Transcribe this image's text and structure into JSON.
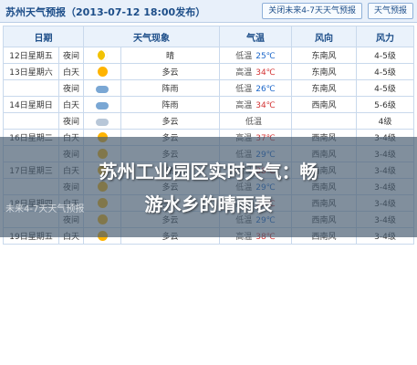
{
  "header": {
    "title": "苏州天气预报（2013-07-12 18:00发布）",
    "btn_close": "关闭未来4-7天天气预报",
    "btn_toggle": "天气预报"
  },
  "table": {
    "columns": [
      "日期",
      "天气现象",
      "气温",
      "风向",
      "风力"
    ],
    "rows": [
      {
        "date": "12日星期五",
        "period": "夜间",
        "icon": "moon-icon",
        "weather": "晴",
        "temp_label": "低温",
        "temp": "25℃",
        "wind": "东南风",
        "level": "4-5级"
      },
      {
        "date": "13日星期六",
        "period": "白天",
        "icon": "partly-cloudy-icon",
        "weather": "多云",
        "temp_label": "高温",
        "temp": "34℃",
        "wind": "东南风",
        "level": "4-5级"
      },
      {
        "date": "",
        "period": "夜间",
        "icon": "rain-icon",
        "weather": "阵雨",
        "temp_label": "低温",
        "temp": "26℃",
        "wind": "东南风",
        "level": "4-5级"
      },
      {
        "date": "14日星期日",
        "period": "白天",
        "icon": "rain-icon",
        "weather": "阵雨",
        "temp_label": "高温",
        "temp": "34℃",
        "wind": "西南风",
        "level": "5-6级"
      },
      {
        "date": "",
        "period": "夜间",
        "icon": "cloud-icon",
        "weather": "多云",
        "temp_label": "低温",
        "temp": "",
        "wind": "",
        "level": "4级"
      },
      {
        "date": "16日星期二",
        "period": "白天",
        "icon": "partly-cloudy-icon",
        "weather": "多云",
        "temp_label": "高温",
        "temp": "37℃",
        "wind": "西南风",
        "level": "3-4级"
      },
      {
        "date": "",
        "period": "夜间",
        "icon": "partly-cloudy-icon",
        "weather": "多云",
        "temp_label": "低温",
        "temp": "29℃",
        "wind": "西南风",
        "level": "3-4级"
      },
      {
        "date": "17日星期三",
        "period": "白天",
        "icon": "sun-icon",
        "weather": "晴",
        "temp_label": "高温",
        "temp": "38℃",
        "wind": "西南风",
        "level": "3-4级"
      },
      {
        "date": "",
        "period": "夜间",
        "icon": "partly-cloudy-icon",
        "weather": "多云",
        "temp_label": "低温",
        "temp": "29℃",
        "wind": "西南风",
        "level": "3-4级"
      },
      {
        "date": "18日星期四",
        "period": "白天",
        "icon": "partly-cloudy-icon",
        "weather": "多云",
        "temp_label": "高温",
        "temp": "37℃",
        "wind": "西南风",
        "level": "3-4级"
      },
      {
        "date": "",
        "period": "夜间",
        "icon": "partly-cloudy-icon",
        "weather": "多云",
        "temp_label": "低温",
        "temp": "29℃",
        "wind": "西南风",
        "level": "3-4级"
      },
      {
        "date": "19日星期五",
        "period": "白天",
        "icon": "partly-cloudy-icon",
        "weather": "多云",
        "temp_label": "高温",
        "temp": "38℃",
        "wind": "西南风",
        "level": "3-4级"
      }
    ]
  },
  "overlay": {
    "line1": "苏州工业园区实时天气：畅",
    "line2": "游水乡的晴雨表",
    "faint": "未来4-7天天气预报"
  },
  "colors": {
    "hot": "#d33333",
    "cold": "#1b66c9",
    "header_bg": "#e8f0fa"
  }
}
